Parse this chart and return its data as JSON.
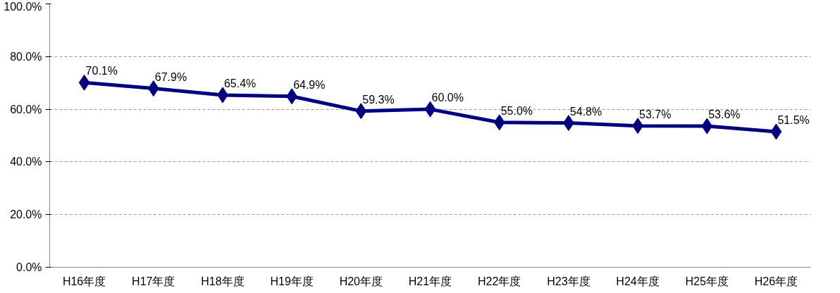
{
  "chart_data": {
    "type": "line",
    "categories": [
      "H16年度",
      "H17年度",
      "H18年度",
      "H19年度",
      "H20年度",
      "H21年度",
      "H22年度",
      "H23年度",
      "H24年度",
      "H25年度",
      "H26年度"
    ],
    "series": [
      {
        "color": "#000080",
        "values": [
          70.1,
          67.9,
          65.4,
          64.9,
          59.3,
          60.0,
          55.0,
          54.8,
          53.7,
          53.6,
          51.5
        ],
        "value_labels": [
          "70.1%",
          "67.9%",
          "65.4%",
          "64.9%",
          "59.3%",
          "60.0%",
          "55.0%",
          "54.8%",
          "53.7%",
          "53.6%",
          "51.5%"
        ]
      }
    ],
    "ylim": [
      0,
      100
    ],
    "yticks": [
      {
        "value": 0,
        "label": "0.0%"
      },
      {
        "value": 20,
        "label": "20.0%"
      },
      {
        "value": 40,
        "label": "40.0%"
      },
      {
        "value": 60,
        "label": "60.0%"
      },
      {
        "value": 80,
        "label": "80.0%"
      },
      {
        "value": 100,
        "label": "100.0%"
      }
    ],
    "grid": "y",
    "marker": "diamond",
    "line_style": "solid"
  }
}
